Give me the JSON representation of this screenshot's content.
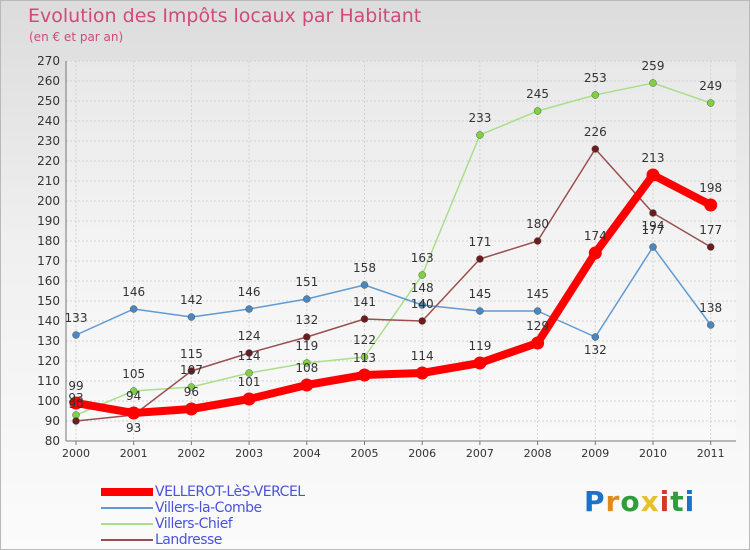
{
  "header": {
    "title": "Evolution des Impôts locaux par Habitant",
    "subtitle": "(en € et par an)"
  },
  "logo": {
    "text": "Proxiti"
  },
  "chart_data": {
    "type": "line",
    "title": "Evolution des Impôts locaux par Habitant",
    "subtitle": "(en € et par an)",
    "categories": [
      "2000",
      "2001",
      "2002",
      "2003",
      "2004",
      "2005",
      "2006",
      "2007",
      "2008",
      "2009",
      "2010",
      "2011"
    ],
    "ylim": [
      80,
      270
    ],
    "yticks": [
      80,
      90,
      100,
      110,
      120,
      130,
      140,
      150,
      160,
      170,
      180,
      190,
      200,
      210,
      220,
      230,
      240,
      250,
      260,
      270
    ],
    "grid": true,
    "legend_position": "bottom-left",
    "series": [
      {
        "name": "VELLEROT-LèS-VERCEL",
        "color": "#ff0000",
        "marker_color": "#ff0000",
        "values": [
          99,
          94,
          96,
          101,
          108,
          113,
          114,
          119,
          129,
          174,
          213,
          198
        ]
      },
      {
        "name": "Villers-la-Combe",
        "color": "#5f9bd2",
        "marker_color": "#4a86c0",
        "values": [
          133,
          146,
          142,
          146,
          151,
          158,
          148,
          145,
          145,
          132,
          177,
          138
        ]
      },
      {
        "name": "Villers-Chief",
        "color": "#a8e08a",
        "marker_color": "#7ed13f",
        "values": [
          93,
          105,
          107,
          114,
          119,
          122,
          163,
          233,
          245,
          253,
          259,
          249
        ]
      },
      {
        "name": "Landresse",
        "color": "#9a4f4f",
        "marker_color": "#6b1d1d",
        "values": [
          90,
          93,
          115,
          124,
          132,
          141,
          140,
          171,
          180,
          226,
          194,
          177
        ]
      }
    ]
  }
}
